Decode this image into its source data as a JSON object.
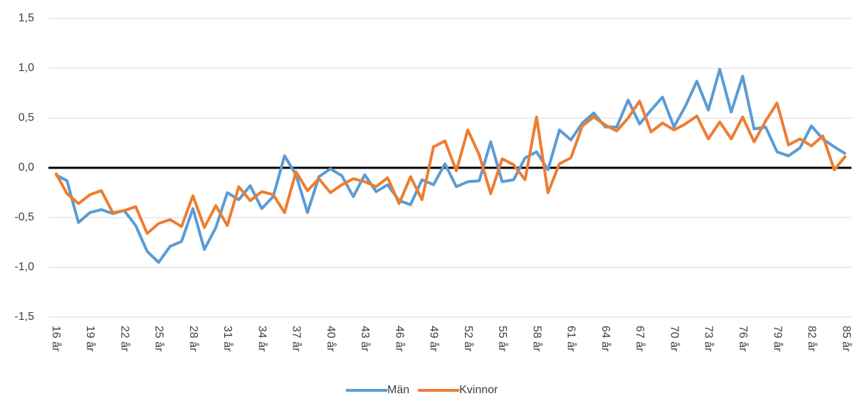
{
  "chart_data": {
    "type": "line",
    "categories": [
      "16 år",
      null,
      null,
      "19 år",
      null,
      null,
      "22 år",
      null,
      null,
      "25 år",
      null,
      null,
      "28 år",
      null,
      null,
      "31 år",
      null,
      null,
      "34 år",
      null,
      null,
      "37 år",
      null,
      null,
      "40 år",
      null,
      null,
      "43 år",
      null,
      null,
      "46 år",
      null,
      null,
      "49 år",
      null,
      null,
      "52 år",
      null,
      null,
      "55 år",
      null,
      null,
      "58 år",
      null,
      null,
      "61 år",
      null,
      null,
      "64 år",
      null,
      null,
      "67 år",
      null,
      null,
      "70 år",
      null,
      null,
      "73 år",
      null,
      null,
      "76 år",
      null,
      null,
      "79 år",
      null,
      null,
      "82 år",
      null,
      null,
      "85 år"
    ],
    "series": [
      {
        "name": "Män",
        "color": "#5b9bd5",
        "values": [
          -0.07,
          -0.13,
          -0.55,
          -0.45,
          -0.42,
          -0.46,
          -0.43,
          -0.58,
          -0.84,
          -0.95,
          -0.79,
          -0.74,
          -0.41,
          -0.82,
          -0.6,
          -0.25,
          -0.32,
          -0.18,
          -0.41,
          -0.29,
          0.12,
          -0.07,
          -0.45,
          -0.09,
          -0.01,
          -0.08,
          -0.29,
          -0.07,
          -0.24,
          -0.17,
          -0.33,
          -0.37,
          -0.12,
          -0.17,
          0.04,
          -0.19,
          -0.14,
          -0.13,
          0.26,
          -0.14,
          -0.12,
          0.1,
          0.16,
          -0.02,
          0.38,
          0.28,
          0.45,
          0.55,
          0.41,
          0.41,
          0.68,
          0.44,
          0.58,
          0.71,
          0.41,
          0.62,
          0.87,
          0.58,
          0.99,
          0.56,
          0.92,
          0.39,
          0.41,
          0.16,
          0.12,
          0.2,
          0.42,
          0.29,
          0.21,
          0.14
        ]
      },
      {
        "name": "Kvinnor",
        "color": "#ed7d31",
        "values": [
          -0.05,
          -0.26,
          -0.36,
          -0.27,
          -0.23,
          -0.45,
          -0.43,
          -0.39,
          -0.66,
          -0.56,
          -0.52,
          -0.59,
          -0.28,
          -0.6,
          -0.38,
          -0.58,
          -0.19,
          -0.33,
          -0.24,
          -0.27,
          -0.45,
          -0.04,
          -0.23,
          -0.11,
          -0.25,
          -0.17,
          -0.11,
          -0.14,
          -0.19,
          -0.1,
          -0.36,
          -0.09,
          -0.32,
          0.21,
          0.27,
          -0.03,
          0.38,
          0.13,
          -0.26,
          0.09,
          0.03,
          -0.12,
          0.51,
          -0.25,
          0.04,
          0.1,
          0.42,
          0.51,
          0.43,
          0.37,
          0.5,
          0.67,
          0.36,
          0.45,
          0.38,
          0.44,
          0.52,
          0.29,
          0.46,
          0.29,
          0.51,
          0.26,
          0.47,
          0.65,
          0.23,
          0.29,
          0.22,
          0.32,
          -0.02,
          0.12
        ]
      }
    ],
    "ylim": [
      -1.5,
      1.5
    ],
    "yticks": [
      {
        "value": -1.5,
        "label": "-1,5"
      },
      {
        "value": -1,
        "label": "-1,0"
      },
      {
        "value": -0.5,
        "label": "-0,5"
      },
      {
        "value": 0,
        "label": "0,0"
      },
      {
        "value": 0.5,
        "label": "0,5"
      },
      {
        "value": 1,
        "label": "1,0"
      },
      {
        "value": 1.5,
        "label": "1,5"
      }
    ],
    "grid": true,
    "legend": "bottom"
  }
}
